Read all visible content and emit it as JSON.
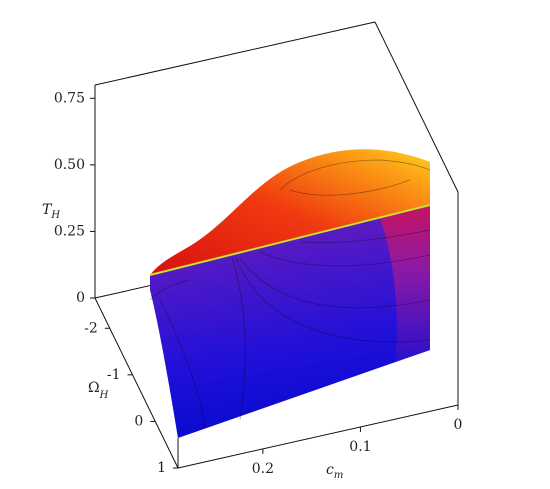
{
  "chart_data": {
    "type": "surface3d",
    "xlabel": {
      "text": "c",
      "subscript": "m"
    },
    "ylabel": {
      "text": "Ω",
      "subscript": "H"
    },
    "zlabel": {
      "text": "T",
      "subscript": "H"
    },
    "xlim": [
      0,
      0.287
    ],
    "xticks": [
      0,
      0.1,
      0.2
    ],
    "ylim": [
      -2.65,
      1
    ],
    "yticks": [
      -2,
      -1,
      0,
      1
    ],
    "zlim": [
      0,
      0.8
    ],
    "zticks": [
      0,
      0.25,
      {
        "value": 0.5,
        "label": "0.50"
      },
      0.75
    ]
  }
}
